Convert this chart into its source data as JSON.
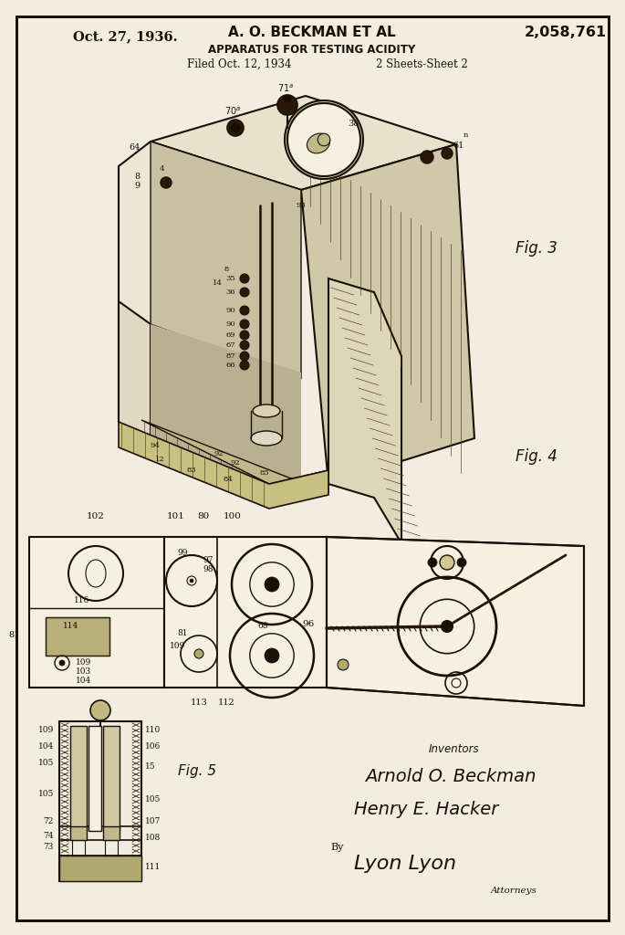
{
  "background_color": "#f2ede0",
  "text_color": "#1a1008",
  "header": {
    "date": "Oct. 27, 1936.",
    "inventors": "A. O. BECKMAN ET AL",
    "patent_num": "2,058,761",
    "title": "APPARATUS FOR TESTING ACIDITY",
    "filed": "Filed Oct. 12, 1934",
    "sheets": "2 Sheets-Sheet 2"
  },
  "fig_labels": {
    "fig3": "Fig. 3",
    "fig4": "Fig. 4",
    "fig5": "Fig. 5"
  },
  "signature_block": {
    "inventors_label": "Inventors",
    "name1": "Arnold O. Beckman",
    "name2": "Henry E. Hacker",
    "by": "By",
    "attorney_sig": "Lyon Lyon",
    "attorney_label": "Attorneys"
  }
}
